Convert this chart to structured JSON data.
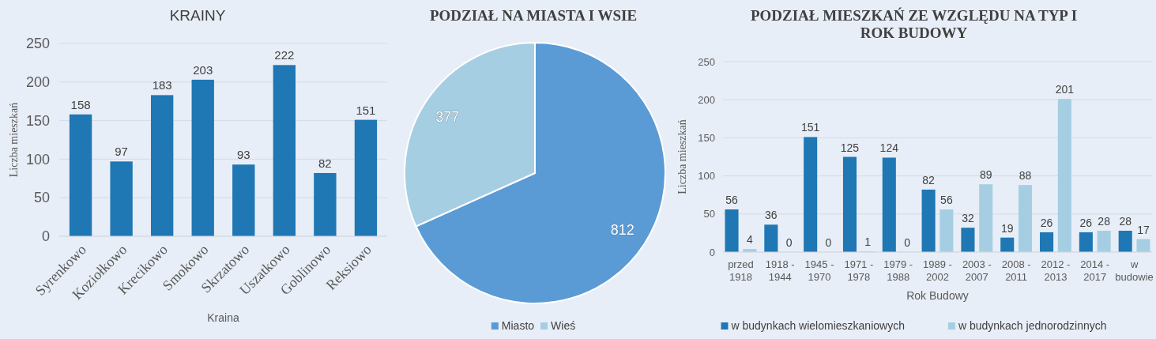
{
  "chart_data": [
    {
      "type": "bar",
      "title": "KRAINY",
      "xlabel": "Kraina",
      "ylabel": "Liczba mieszkań",
      "categories": [
        "Syrenkowo",
        "Koziołkowo",
        "Krecikowo",
        "Smokowo",
        "Skrzatowo",
        "Uszatkowo",
        "Goblinowo",
        "Reksiowo"
      ],
      "values": [
        158,
        97,
        183,
        203,
        93,
        222,
        82,
        151
      ],
      "color": "#1f77b4",
      "ylim": [
        0,
        250
      ],
      "yticks": [
        0,
        50,
        100,
        150,
        200,
        250
      ],
      "grid": "y",
      "data_labels": true
    },
    {
      "type": "pie",
      "title": "PODZIAŁ NA MIASTA I WSIE",
      "categories": [
        "Miasto",
        "Wieś"
      ],
      "values": [
        812,
        377
      ],
      "colors": [
        "#5b9bd5",
        "#a6cee3"
      ],
      "data_labels": true,
      "legend": "bottom"
    },
    {
      "type": "bar",
      "title": "PODZIAŁ MIESZKAŃ ZE WZGLĘDU NA TYP I ROK BUDOWY",
      "xlabel": "Rok Budowy",
      "ylabel": "Liczba mieszkań",
      "categories": [
        "przed 1918",
        "1918 - 1944",
        "1945 - 1970",
        "1971 - 1978",
        "1979 - 1988",
        "1989 - 2002",
        "2003 - 2007",
        "2008 - 2011",
        "2012 - 2013",
        "2014 - 2017",
        "w budowie"
      ],
      "series": [
        {
          "name": "w budynkach wielomieszkaniowych",
          "color": "#1f77b4",
          "values": [
            56,
            36,
            151,
            125,
            124,
            82,
            32,
            19,
            26,
            26,
            28
          ]
        },
        {
          "name": "w budynkach jednorodzinnych",
          "color": "#a6cee3",
          "values": [
            4,
            0,
            0,
            1,
            0,
            56,
            89,
            88,
            201,
            28,
            17
          ]
        }
      ],
      "ylim": [
        0,
        250
      ],
      "yticks": [
        0,
        50,
        100,
        150,
        200,
        250
      ],
      "grid": "y",
      "data_labels": true,
      "legend": "bottom"
    }
  ]
}
